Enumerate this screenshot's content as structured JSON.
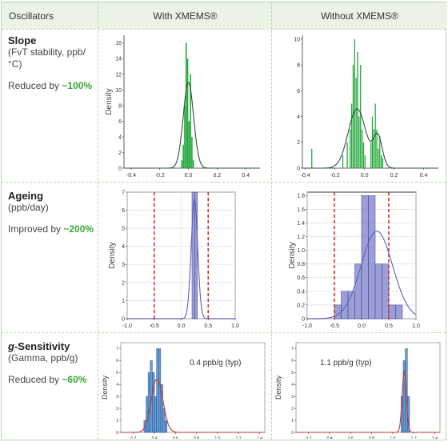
{
  "header": {
    "col1": "Oscillators",
    "col2": "With XMEMS®",
    "col3": "Without XMEMS®"
  },
  "rows": [
    {
      "title": "Slope",
      "subtitle": "(FvT stability, ppb/°C)",
      "result_prefix": "Reduced by ",
      "result_value": "~100%"
    },
    {
      "title": "Ageing",
      "subtitle": "(ppb/day)",
      "result_prefix": "Improved by ",
      "result_value": "~200%"
    },
    {
      "title_italic": "g",
      "title": "-Sensitivity",
      "subtitle": "(Gamma, ppb/g)",
      "result_prefix": "Reduced by ",
      "result_value": "~60%"
    }
  ],
  "colors": {
    "green_bar": "#21a83a",
    "blue_bar": "#7b7fc9",
    "light_blue_bar": "#5e9fd4",
    "accent_text": "#3aa637",
    "ref_line": "#d32f2f",
    "red_curve": "#c0392b",
    "grid_border": "#b9d6b0"
  },
  "chart_data": [
    {
      "id": "slope_with",
      "type": "bar",
      "ylabel": "Density",
      "xlim": [
        -0.45,
        0.5
      ],
      "ylim": [
        0,
        17
      ],
      "xticks": [
        "-0.4",
        "-0.2",
        "0.0",
        "0.2",
        "0.4"
      ],
      "xtick_values": [
        -0.4,
        -0.2,
        0.0,
        0.2,
        0.4
      ],
      "yticks": [
        "0",
        "2",
        "4",
        "6",
        "8",
        "10",
        "12",
        "14",
        "16"
      ],
      "ytick_values": [
        0,
        2,
        4,
        6,
        8,
        10,
        12,
        14,
        16
      ],
      "bins": [
        -0.05,
        -0.04,
        -0.03,
        -0.02,
        -0.01,
        0.0,
        0.01,
        0.02,
        0.03
      ],
      "bin_width": 0.01,
      "values": [
        1,
        3,
        8,
        16,
        14,
        6,
        12,
        4,
        1
      ],
      "curve": {
        "type": "normal",
        "mean": 0.0,
        "sd": 0.036,
        "peak": 11
      }
    },
    {
      "id": "slope_without",
      "type": "bar",
      "ylabel": "",
      "xlim": [
        -0.42,
        0.5
      ],
      "ylim": [
        0,
        10.3
      ],
      "xticks": [
        "-0.4",
        "-0.2",
        "0.0",
        "0.2",
        "0.4"
      ],
      "xtick_values": [
        -0.4,
        -0.2,
        0.0,
        0.2,
        0.4
      ],
      "yticks": [
        "0",
        "2",
        "4",
        "6",
        "8",
        "10"
      ],
      "ytick_values": [
        0,
        2,
        4,
        6,
        8,
        10
      ],
      "bins": [
        -0.36,
        -0.15,
        -0.12,
        -0.1,
        -0.09,
        -0.08,
        -0.07,
        -0.06,
        -0.05,
        -0.04,
        -0.03,
        -0.02,
        -0.01,
        0.0,
        0.04,
        0.05,
        0.06,
        0.07,
        0.08,
        0.09,
        0.1,
        0.11,
        0.12
      ],
      "bin_width": 0.008,
      "values": [
        1.5,
        1.0,
        2.0,
        3.0,
        5.0,
        8.0,
        10.0,
        7.0,
        9.0,
        4.0,
        8.0,
        3.0,
        2.0,
        1.0,
        2.0,
        4.0,
        3.0,
        5.0,
        3.0,
        1.5,
        2.5,
        1.0,
        0.8
      ],
      "curve": {
        "type": "bimodal",
        "mean": -0.05,
        "sd": 0.06,
        "peak": 4.6,
        "mean2": 0.09,
        "sd2": 0.03,
        "peak2": 2.4
      }
    },
    {
      "id": "ageing_with",
      "type": "bar",
      "ylabel": "Density",
      "xlim": [
        -1.0,
        1.0
      ],
      "ylim": [
        0,
        7
      ],
      "xticks": [
        "-1.0",
        "-0.5",
        "0.0",
        "0.5",
        "1.0"
      ],
      "xtick_values": [
        -1.0,
        -0.5,
        0.0,
        0.5,
        1.0
      ],
      "yticks": [
        "0",
        "1",
        "2",
        "3",
        "4",
        "5",
        "6",
        "7"
      ],
      "ytick_values": [
        0,
        1,
        2,
        3,
        4,
        5,
        6,
        7
      ],
      "bins": [
        0.2,
        0.25
      ],
      "bin_width": 0.05,
      "values": [
        7,
        7
      ],
      "curve": {
        "type": "normal",
        "mean": 0.245,
        "sd": 0.06,
        "peak": 6.6
      },
      "ref_lines": [
        -0.5,
        0.5
      ]
    },
    {
      "id": "ageing_without",
      "type": "bar",
      "ylabel": "Density",
      "xlim": [
        -1.0,
        1.0
      ],
      "ylim": [
        0,
        1.85
      ],
      "xticks": [
        "-1.0",
        "-0.5",
        "0.0",
        "0.5",
        "1.0"
      ],
      "xtick_values": [
        -1.0,
        -0.5,
        0.0,
        0.5,
        1.0
      ],
      "yticks": [
        "0",
        "0.2",
        "0.4",
        "0.6",
        "0.8",
        "1.0",
        "1.2",
        "1.4",
        "1.6",
        "1.8"
      ],
      "ytick_values": [
        0,
        0.2,
        0.4,
        0.6,
        0.8,
        1.0,
        1.2,
        1.4,
        1.6,
        1.8
      ],
      "bins": [
        -0.5,
        -0.375,
        -0.25,
        -0.125,
        0.0,
        0.125,
        0.25,
        0.375,
        0.5,
        0.625
      ],
      "bin_width": 0.125,
      "values": [
        0.2,
        0.4,
        0.4,
        0.8,
        1.8,
        1.8,
        0.8,
        0.8,
        0.2,
        0.2
      ],
      "curve": {
        "type": "normal",
        "mean": 0.28,
        "sd": 0.29,
        "peak": 1.28
      },
      "ref_lines": [
        -0.5,
        0.5
      ]
    },
    {
      "id": "gsens_with",
      "type": "bar",
      "ylabel": "Density",
      "annotation": "0.4 ppb/g (typ)",
      "xlim": [
        0.08,
        1.45
      ],
      "ylim": [
        0,
        7.5
      ],
      "xticks": [
        "0.2",
        "0.4",
        "0.6",
        "0.8",
        "1.0",
        "1.2",
        "1.4"
      ],
      "xtick_values": [
        0.2,
        0.4,
        0.6,
        0.8,
        1.0,
        1.2,
        1.4
      ],
      "yticks": [
        "0",
        "1",
        "2",
        "3",
        "4",
        "5",
        "6",
        "7"
      ],
      "ytick_values": [
        0,
        1,
        2,
        3,
        4,
        5,
        6,
        7
      ],
      "bins": [
        0.3,
        0.32,
        0.34,
        0.36,
        0.38,
        0.4,
        0.42,
        0.44,
        0.46,
        0.48,
        0.5
      ],
      "bin_width": 0.02,
      "values": [
        1,
        3,
        5,
        6,
        5,
        3,
        7,
        7,
        4,
        2,
        1
      ],
      "curve": {
        "type": "normal",
        "mean": 0.425,
        "sd": 0.055,
        "peak": 4.5,
        "color": "red"
      }
    },
    {
      "id": "gsens_without",
      "type": "bar",
      "ylabel": "Density",
      "annotation": "1.1 ppb/g (typ)",
      "xlim": [
        0.08,
        1.45
      ],
      "ylim": [
        0,
        7.5
      ],
      "xticks": [
        "0.2",
        "0.4",
        "0.6",
        "0.8",
        "1.0",
        "1.2",
        "1.4"
      ],
      "xtick_values": [
        0.2,
        0.4,
        0.6,
        0.8,
        1.0,
        1.2,
        1.4
      ],
      "yticks": [
        "0",
        "1",
        "2",
        "3",
        "4",
        "5",
        "6",
        "7"
      ],
      "ytick_values": [
        0,
        1,
        2,
        3,
        4,
        5,
        6,
        7
      ],
      "bins": [
        1.08,
        1.1,
        1.12,
        1.14
      ],
      "bin_width": 0.02,
      "values": [
        3,
        6,
        7,
        3
      ],
      "curve": {
        "type": "normal",
        "mean": 1.11,
        "sd": 0.02,
        "peak": 5.2,
        "color": "red"
      }
    }
  ]
}
